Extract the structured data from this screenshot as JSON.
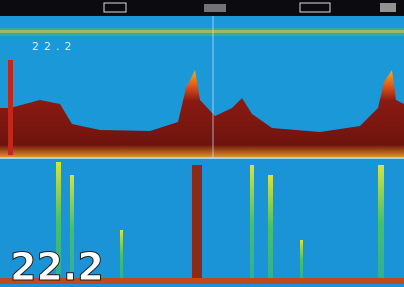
{
  "screen": {
    "depth_small": "22.2",
    "depth_large": "22.2"
  }
}
